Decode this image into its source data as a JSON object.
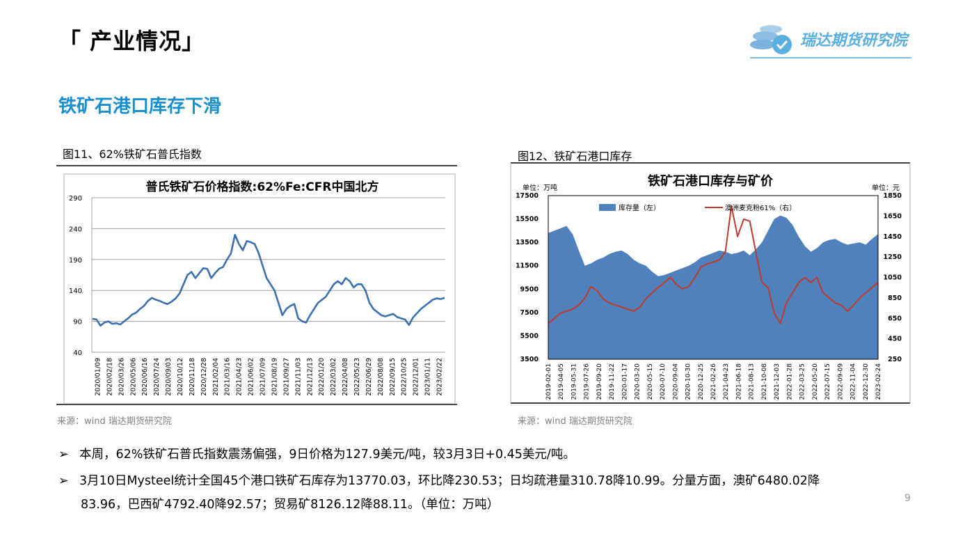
{
  "header": {
    "title": "「 产业情况」",
    "logo_text": "瑞达期货研究院"
  },
  "heading": "铁矿石港口库存下滑",
  "fig1": {
    "label": "图11、62%铁矿石普氏指数",
    "source": "来源：wind   瑞达期货研究院"
  },
  "fig2": {
    "label": "图12、铁矿石港口库存",
    "source": "来源：wind   瑞达期货研究院"
  },
  "bullets": [
    {
      "arrow": "➢",
      "text": "本周，62%铁矿石普氏指数震荡偏强，9日价格为127.9美元/吨，较3月3日+0.45美元/吨。"
    },
    {
      "arrow": "➢",
      "text": "3月10日Mysteel统计全国45个港口铁矿石库存为13770.03，环比降230.53；日均疏港量310.78降10.99。分量方面，澳矿6480.02降"
    },
    {
      "arrow": "",
      "text": "83.96，巴西矿4792.40降92.57；贸易矿8126.12降88.11。（单位：万吨）"
    }
  ],
  "page_number": "9",
  "colors": {
    "heading": "#1a8fd0",
    "line": "#3a6fb0",
    "area": "#4f81bd",
    "price": "#c0392b"
  },
  "chart_data": [
    {
      "type": "line",
      "title": "普氏铁矿石价格指数:62%Fe:CFR中国北方",
      "ylim": [
        40,
        290
      ],
      "yticks": [
        40,
        90,
        140,
        190,
        240,
        290
      ],
      "x_tick_labels": [
        "2020/01/09",
        "2020/02/18",
        "2020/03/26",
        "2020/05/06",
        "2020/06/16",
        "2020/07/24",
        "2020/09/03",
        "2020/10/12",
        "2020/11/18",
        "2020/12/28",
        "2021/02/04",
        "2021/03/16",
        "2021/04/23",
        "2021/06/02",
        "2021/07/09",
        "2021/08/19",
        "2021/09/27",
        "2021/11/03",
        "2021/12/13",
        "2022/01/20",
        "2022/03/02",
        "2022/04/08",
        "2022/05/23",
        "2022/06/29",
        "2022/08/08",
        "2022/09/15",
        "2022/10/25",
        "2022/12/01",
        "2023/01/11",
        "2023/02/22"
      ],
      "series": [
        {
          "values": [
            94,
            93,
            83,
            88,
            90,
            86,
            87,
            85,
            90,
            95,
            101,
            104,
            110,
            115,
            123,
            128,
            125,
            123,
            120,
            118,
            122,
            127,
            135,
            150,
            165,
            170,
            160,
            168,
            176,
            175,
            160,
            168,
            175,
            178,
            190,
            200,
            230,
            215,
            205,
            220,
            218,
            215,
            200,
            180,
            160,
            150,
            140,
            120,
            100,
            110,
            115,
            118,
            95,
            90,
            88,
            100,
            110,
            120,
            125,
            130,
            140,
            150,
            155,
            150,
            160,
            155,
            145,
            150,
            150,
            140,
            120,
            110,
            105,
            100,
            98,
            100,
            102,
            97,
            95,
            93,
            84,
            96,
            103,
            110,
            115,
            120,
            125,
            127,
            126,
            127.9
          ]
        }
      ]
    },
    {
      "type": "area",
      "title": "铁矿石港口库存与矿价",
      "left_unit": "单位：万吨",
      "right_unit": "单位：元",
      "left_ylim": [
        3500,
        17500
      ],
      "left_yticks": [
        3500,
        5500,
        7500,
        9500,
        11500,
        13500,
        15500,
        17500
      ],
      "right_ylim": [
        250,
        1850
      ],
      "right_yticks": [
        250,
        450,
        650,
        850,
        1050,
        1250,
        1450,
        1650,
        1850
      ],
      "x_tick_labels": [
        "2019-02-01",
        "2019-04-05",
        "2019-05-31",
        "2019-07-26",
        "2019-09-20",
        "2019-11-22",
        "2020-01-17",
        "2020-03-20",
        "2020-05-15",
        "2020-07-10",
        "2020-09-04",
        "2020-10-30",
        "2020-12-25",
        "2021-02-26",
        "2021-04-23",
        "2021-06-18",
        "2021-08-13",
        "2021-10-08",
        "2021-12-03",
        "2022-01-28",
        "2022-03-25",
        "2022-05-20",
        "2022-07-15",
        "2022-09-09",
        "2022-11-04",
        "2022-12-30",
        "2023-02-24"
      ],
      "series": [
        {
          "name": "库存量（左）",
          "axis": "left",
          "values": [
            14300,
            14500,
            14700,
            14900,
            14200,
            12800,
            11500,
            11700,
            12000,
            12200,
            12500,
            12700,
            12800,
            12500,
            12000,
            11700,
            11500,
            11000,
            10600,
            10700,
            10900,
            11100,
            11300,
            11500,
            11800,
            12200,
            12400,
            12600,
            12800,
            12700,
            12500,
            12600,
            12800,
            12400,
            12900,
            13500,
            14500,
            15500,
            15800,
            15600,
            15000,
            14000,
            13200,
            12700,
            13000,
            13500,
            13700,
            13800,
            13500,
            13300,
            13400,
            13500,
            13300,
            13800,
            14200
          ]
        },
        {
          "name": "澳洲麦克粉61%（右）",
          "axis": "right",
          "values": [
            600,
            650,
            700,
            720,
            740,
            780,
            850,
            960,
            920,
            840,
            800,
            780,
            760,
            740,
            720,
            760,
            840,
            900,
            950,
            1000,
            1050,
            980,
            940,
            960,
            1050,
            1150,
            1180,
            1200,
            1220,
            1300,
            1750,
            1450,
            1620,
            1600,
            1300,
            1000,
            950,
            700,
            600,
            800,
            900,
            1000,
            1050,
            1000,
            1050,
            900,
            850,
            800,
            780,
            720,
            780,
            850,
            900,
            950,
            1000
          ]
        }
      ],
      "legend_position": "top"
    }
  ]
}
